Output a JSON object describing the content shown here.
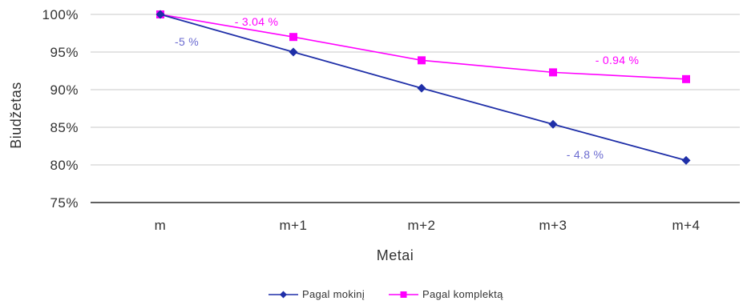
{
  "chart_data": {
    "type": "line",
    "categories": [
      "m",
      "m+1",
      "m+2",
      "m+3",
      "m+4"
    ],
    "series": [
      {
        "name": "Pagal mokinį",
        "values": [
          100,
          95,
          90.2,
          85.4,
          80.6
        ],
        "color": "#1f2fa8",
        "marker": "diamond"
      },
      {
        "name": "Pagal komplektą",
        "values": [
          100,
          97,
          93.9,
          92.3,
          91.4
        ],
        "color": "#ff00ff",
        "marker": "square"
      }
    ],
    "xlabel": "Metai",
    "ylabel": "Biudžetas",
    "ylim": [
      75,
      100
    ],
    "yticks": [
      "75%",
      "80%",
      "85%",
      "90%",
      "95%",
      "100%"
    ],
    "grid": true,
    "legend_position": "bottom",
    "annotations": [
      {
        "text": "- 3.04 %",
        "series": 1,
        "color": "#ff00ff"
      },
      {
        "text": "-5 %",
        "series": 0,
        "color": "#6a6ad0"
      },
      {
        "text": "- 0.94 %",
        "series": 1,
        "color": "#ff00ff"
      },
      {
        "text": "- 4.8 %",
        "series": 0,
        "color": "#6a6ad0"
      }
    ]
  }
}
